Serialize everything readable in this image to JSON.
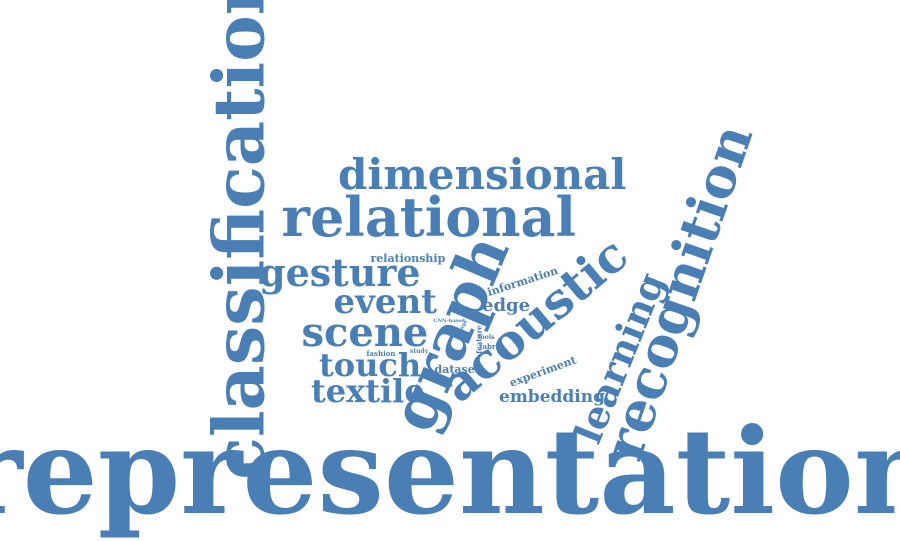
{
  "colors": {
    "word": "#4a7fb5",
    "background": "#ffffff"
  },
  "words": [
    {
      "id": "representation",
      "text": "representation",
      "weight": 100,
      "orientation": "horizontal"
    },
    {
      "id": "classification",
      "text": "classification",
      "weight": 62,
      "orientation": "vertical"
    },
    {
      "id": "recognition",
      "text": "recognition",
      "weight": 44,
      "orientation": "rotated"
    },
    {
      "id": "graph",
      "text": "graph",
      "weight": 44,
      "orientation": "rotated"
    },
    {
      "id": "relational",
      "text": "relational",
      "weight": 38,
      "orientation": "horizontal"
    },
    {
      "id": "acoustic",
      "text": "acoustic",
      "weight": 35,
      "orientation": "rotated"
    },
    {
      "id": "dimensional",
      "text": "dimensional",
      "weight": 31,
      "orientation": "horizontal"
    },
    {
      "id": "learning",
      "text": "learning",
      "weight": 27,
      "orientation": "rotated"
    },
    {
      "id": "gesture",
      "text": "gesture",
      "weight": 27,
      "orientation": "horizontal"
    },
    {
      "id": "scene",
      "text": "scene",
      "weight": 27,
      "orientation": "horizontal"
    },
    {
      "id": "event",
      "text": "event",
      "weight": 24,
      "orientation": "horizontal"
    },
    {
      "id": "touch",
      "text": "touch",
      "weight": 23,
      "orientation": "horizontal"
    },
    {
      "id": "textile",
      "text": "textile",
      "weight": 23,
      "orientation": "horizontal"
    },
    {
      "id": "edge",
      "text": "edge",
      "weight": 12,
      "orientation": "horizontal"
    },
    {
      "id": "embedding",
      "text": "embedding",
      "weight": 12,
      "orientation": "horizontal"
    },
    {
      "id": "relationship",
      "text": "relationship",
      "weight": 7,
      "orientation": "horizontal"
    },
    {
      "id": "information",
      "text": "information",
      "weight": 7,
      "orientation": "rotated"
    },
    {
      "id": "dataset",
      "text": "dataset",
      "weight": 7,
      "orientation": "horizontal"
    },
    {
      "id": "experiment",
      "text": "experiment",
      "weight": 7,
      "orientation": "rotated"
    },
    {
      "id": "fabric",
      "text": "fabric",
      "weight": 4,
      "orientation": "horizontal"
    },
    {
      "id": "fashion",
      "text": "fashion",
      "weight": 4,
      "orientation": "horizontal"
    },
    {
      "id": "study",
      "text": "study",
      "weight": 3,
      "orientation": "horizontal"
    },
    {
      "id": "tools",
      "text": "tools",
      "weight": 3,
      "orientation": "horizontal"
    },
    {
      "id": "feature",
      "text": "feature",
      "weight": 3,
      "orientation": "vertical"
    },
    {
      "id": "cnn-based",
      "text": "CNN-based",
      "weight": 2,
      "orientation": "horizontal"
    },
    {
      "id": "image",
      "text": "image",
      "weight": 2,
      "orientation": "rotated"
    }
  ]
}
